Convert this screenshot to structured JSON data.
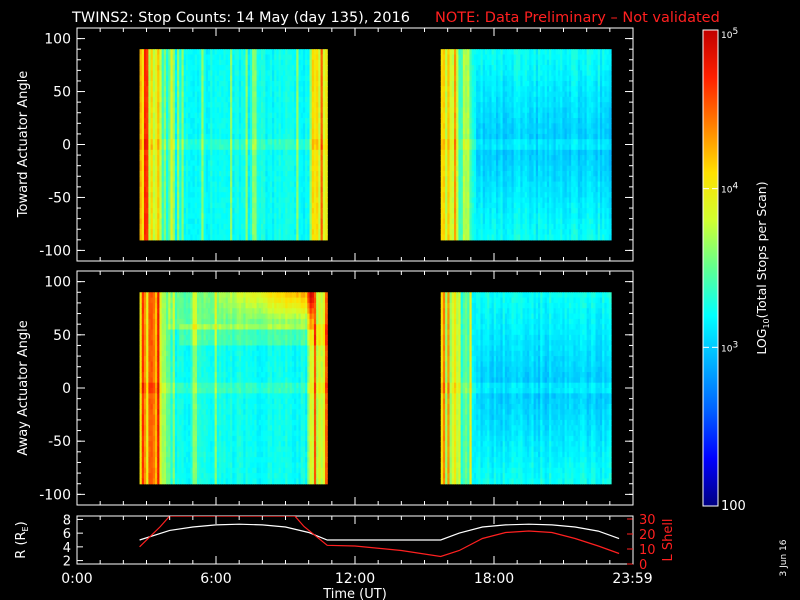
{
  "title": {
    "main": "TWINS2: Stop Counts: 14 May (day 135), 2016",
    "note": "NOTE: Data Preliminary – Not validated"
  },
  "colors": {
    "background": "#000000",
    "axis": "#ffffff",
    "note": "#ff2020",
    "lshell_line": "#ff2020",
    "r_line": "#ffffff"
  },
  "colorbar": {
    "label_prefix": "LOG",
    "label_sub": "10",
    "label_suffix": "(Total Stops per Scan)",
    "tick_labels": [
      {
        "base": "10",
        "exp": "5",
        "value": 100000
      },
      {
        "base": "10",
        "exp": "4",
        "value": 10000
      },
      {
        "base": "10",
        "exp": "3",
        "value": 1000
      },
      {
        "base": "100",
        "exp": "",
        "value": 100
      }
    ],
    "scale": "log",
    "range": [
      100,
      100000
    ],
    "colormap": [
      "#000080",
      "#0000ff",
      "#0060ff",
      "#00b0ff",
      "#00ffff",
      "#60ff90",
      "#d0ff30",
      "#ffe000",
      "#ff8000",
      "#ff2000",
      "#c00000"
    ]
  },
  "time_axis": {
    "label": "Time (UT)",
    "tick_labels": [
      "0:00",
      "6:00",
      "12:00",
      "18:00",
      "23:59"
    ],
    "tick_hours": [
      0,
      6,
      12,
      18,
      23.98
    ],
    "range_hours": [
      0,
      24
    ]
  },
  "stamp": "3 Jun 16",
  "chart_data": [
    {
      "type": "heatmap",
      "ylabel": "Toward Actuator Angle",
      "ylim": [
        -110,
        110
      ],
      "yticks": [
        -100,
        -50,
        0,
        50,
        100
      ],
      "data_intervals_hours": [
        [
          2.7,
          10.8
        ],
        [
          15.7,
          24.0
        ]
      ],
      "angle_range": [
        -90,
        90
      ]
    },
    {
      "type": "heatmap",
      "ylabel": "Away Actuator Angle",
      "ylim": [
        -110,
        110
      ],
      "yticks": [
        -100,
        -50,
        0,
        50,
        100
      ],
      "data_intervals_hours": [
        [
          2.7,
          10.8
        ],
        [
          15.7,
          24.0
        ]
      ],
      "angle_range": [
        -90,
        90
      ]
    },
    {
      "type": "line",
      "ylabel_left": "R (R",
      "ylabel_left_sub": "E",
      "ylabel_left_end": ")",
      "yticks_left": [
        2,
        4,
        6,
        8
      ],
      "ylim_left": [
        1.5,
        8.5
      ],
      "ylabel_right": "L Shell",
      "yticks_right": [
        0,
        10,
        20,
        30
      ],
      "ylim_right": [
        0,
        32
      ],
      "series": [
        {
          "axis": "left",
          "x": [
            2.7,
            4,
            5,
            6,
            7,
            8,
            9,
            10,
            10.8,
            12,
            14,
            15.7,
            16.5,
            17.5,
            18.5,
            19.5,
            20.5,
            21.5,
            22.5,
            23.4
          ],
          "y": [
            5.0,
            6.4,
            6.9,
            7.2,
            7.3,
            7.2,
            6.9,
            6.1,
            5.0,
            5.0,
            5.0,
            5.0,
            6.0,
            6.9,
            7.2,
            7.3,
            7.2,
            6.9,
            6.3,
            5.2
          ]
        },
        {
          "axis": "right",
          "x": [
            2.7,
            3.6,
            4.0,
            9.4,
            9.8,
            10.8,
            12,
            14,
            15.7,
            16.5,
            17.5,
            18.5,
            19.5,
            20.5,
            21.5,
            22.5,
            23.4
          ],
          "y": [
            11.5,
            25,
            32,
            32,
            25,
            12.5,
            12,
            9,
            5,
            9,
            17,
            21,
            22,
            21,
            17,
            12,
            7
          ]
        }
      ]
    }
  ]
}
